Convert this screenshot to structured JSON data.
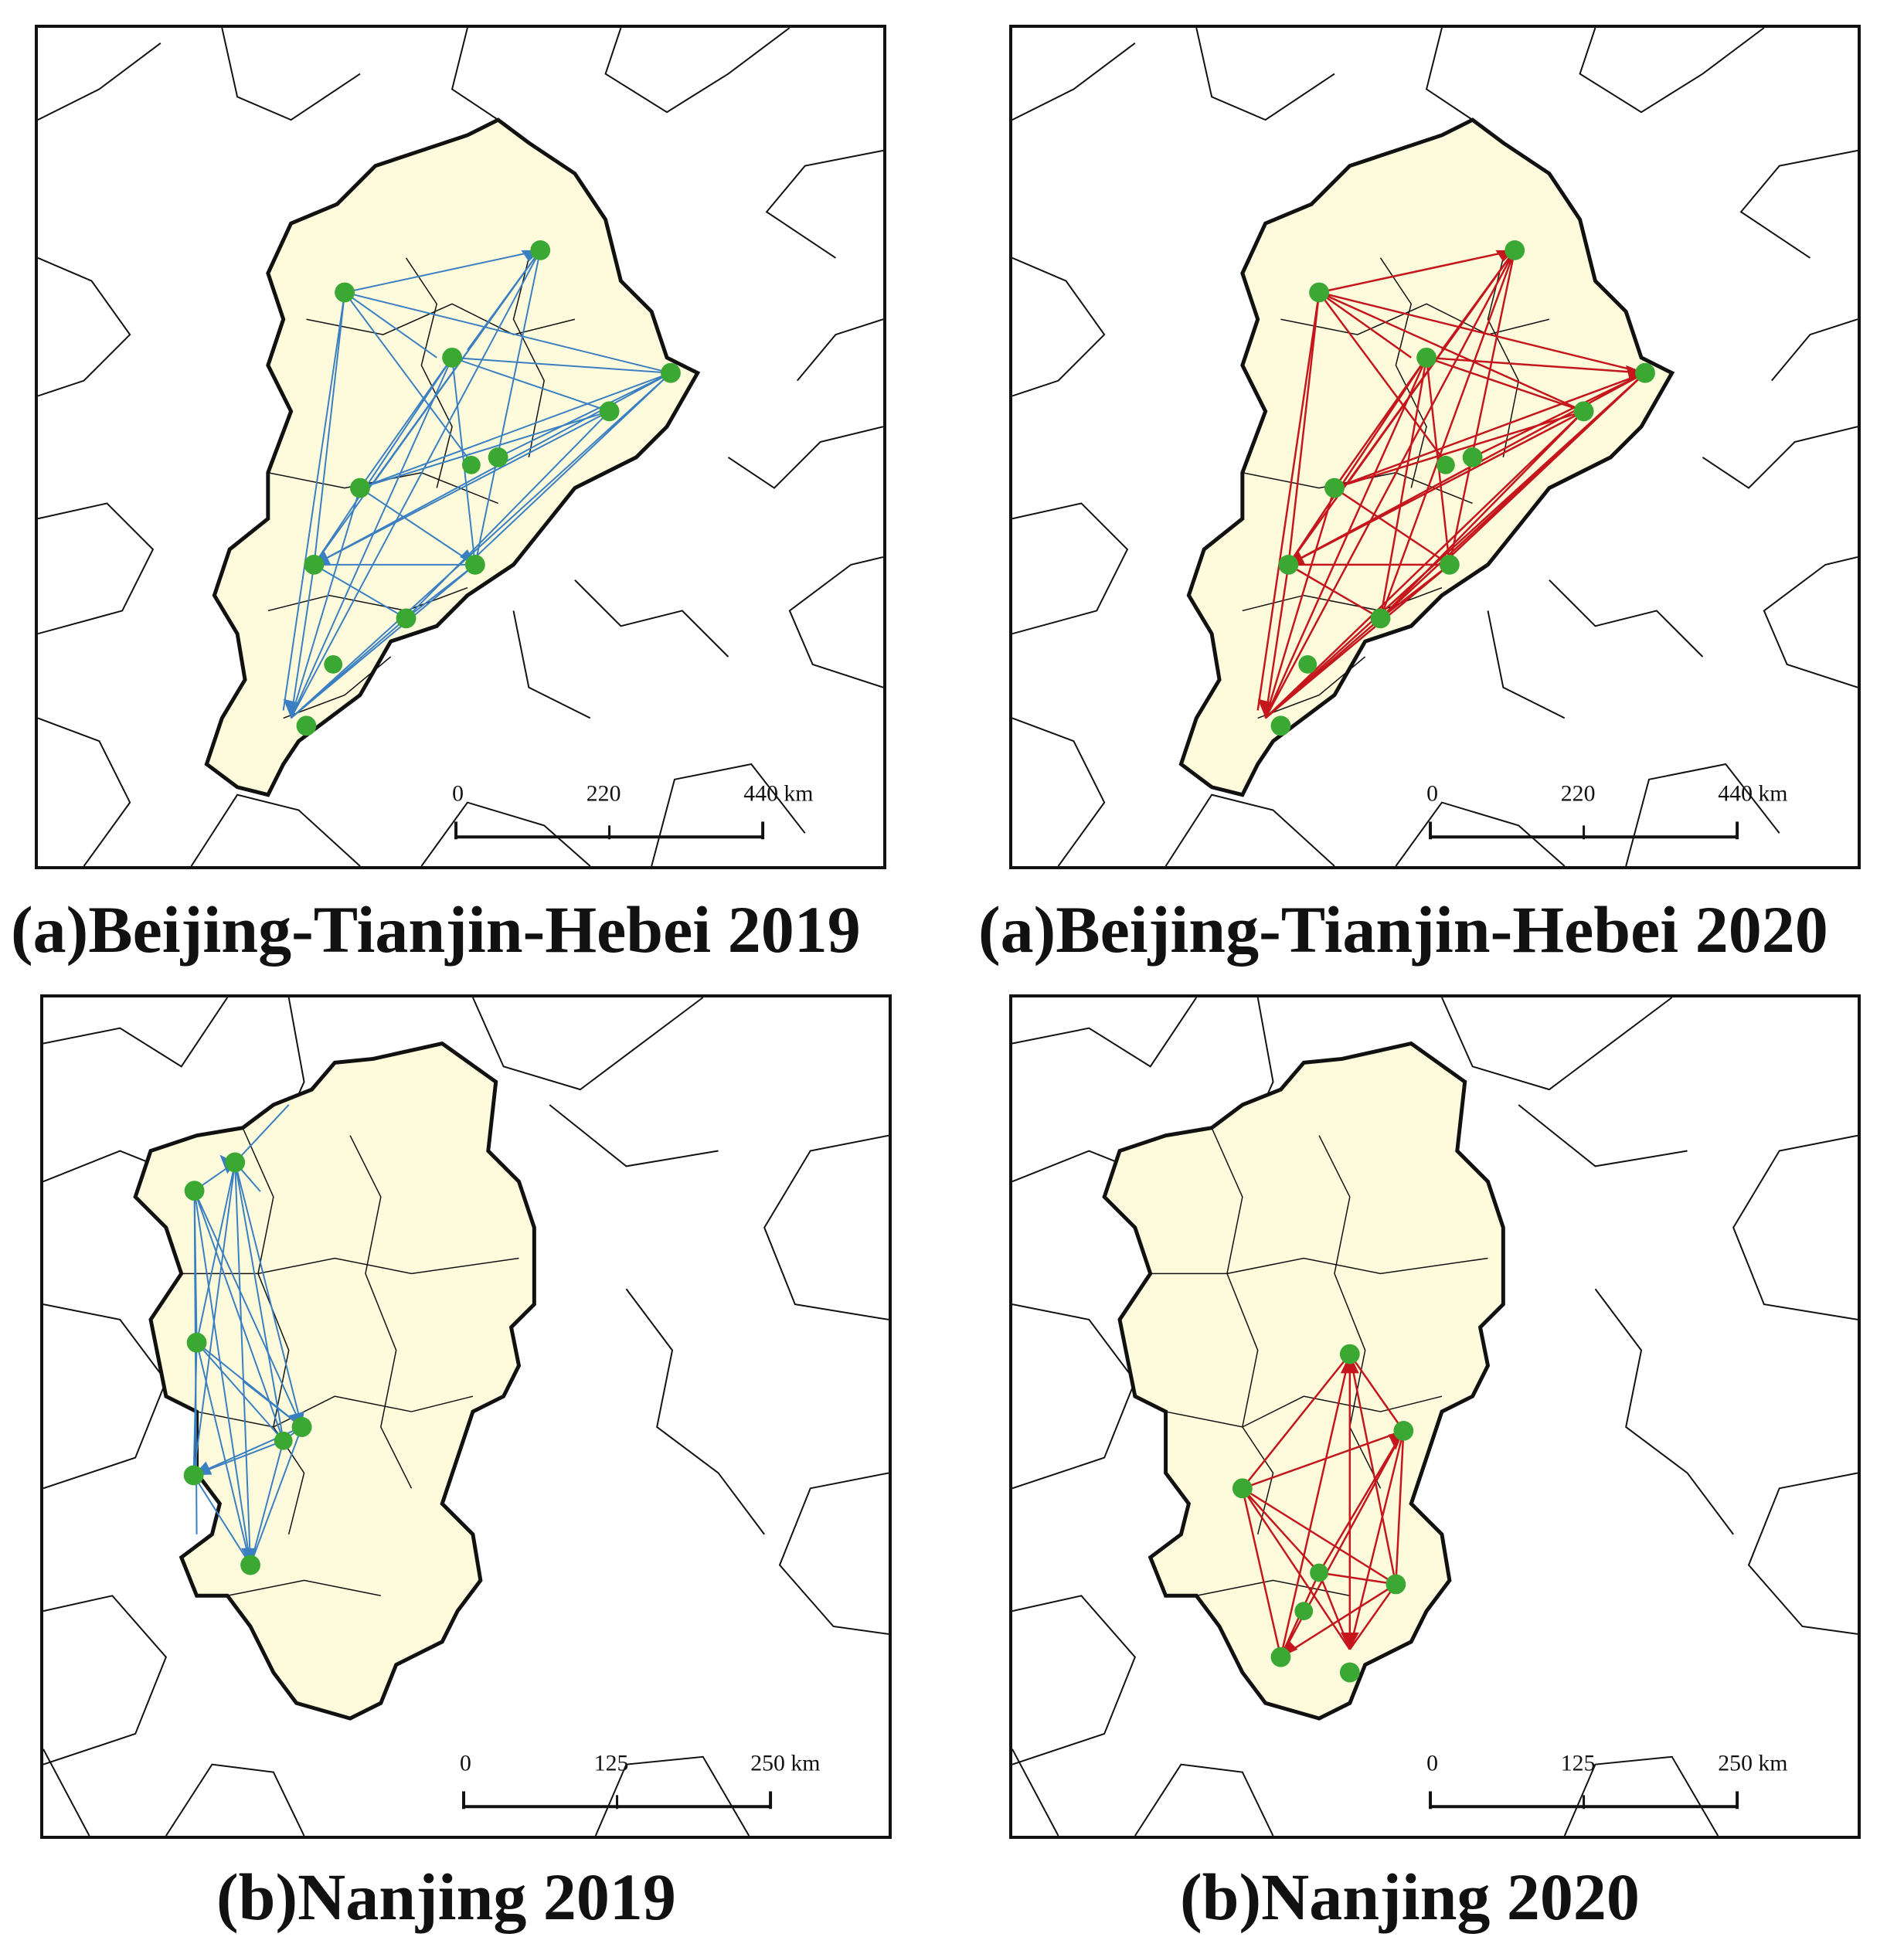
{
  "figure": {
    "panels": [
      {
        "id": "a1",
        "caption": "(a)Beijing-Tianjin-Hebei 2019",
        "flow_color": "#3a7fc1",
        "scale": {
          "ticks": [
            "0",
            "220",
            "440 km"
          ]
        }
      },
      {
        "id": "a2",
        "caption": "(a)Beijing-Tianjin-Hebei 2020",
        "flow_color": "#c4161c",
        "scale": {
          "ticks": [
            "0",
            "220",
            "440 km"
          ]
        }
      },
      {
        "id": "b1",
        "caption": "(b)Nanjing 2019",
        "flow_color": "#3a7fc1",
        "scale": {
          "ticks": [
            "0",
            "125",
            "250 km"
          ]
        }
      },
      {
        "id": "b2",
        "caption": "(b)Nanjing 2020",
        "flow_color": "#c4161c",
        "scale": {
          "ticks": [
            "0",
            "125",
            "250 km"
          ]
        }
      }
    ],
    "region_fill": "#fdfbdc",
    "node_color": "#3aa832"
  }
}
